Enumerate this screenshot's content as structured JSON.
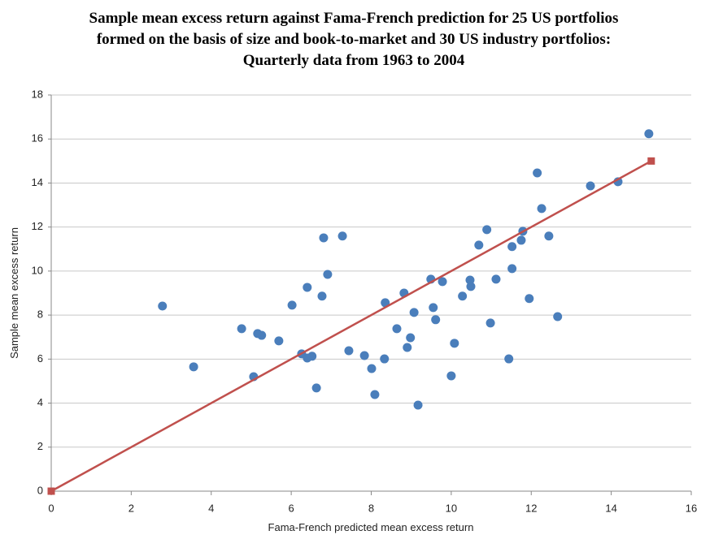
{
  "chart_data": {
    "type": "scatter",
    "title": [
      "Sample mean excess return against Fama-French prediction for 25 US portfolios",
      "formed on the basis of size and book-to-market and 30 US industry portfolios:",
      "Quarterly data from 1963 to 2004"
    ],
    "x_label": "Fama-French predicted mean excess return",
    "y_label": "Sample mean excess return",
    "xlim": [
      0,
      16
    ],
    "xticks": [
      0,
      2,
      4,
      6,
      8,
      10,
      12,
      14,
      16
    ],
    "ylim": [
      0,
      18
    ],
    "yticks": [
      0,
      2,
      4,
      6,
      8,
      10,
      12,
      14,
      16,
      18
    ],
    "grid": true,
    "series": [
      {
        "color": "#4a7ebb",
        "marker": "circle",
        "line": false,
        "x": [
          2.78,
          3.56,
          4.76,
          5.06,
          5.16,
          5.26,
          5.69,
          6.02,
          6.26,
          6.4,
          6.4,
          6.52,
          6.63,
          6.77,
          6.81,
          6.91,
          7.28,
          7.44,
          7.83,
          8.01,
          8.09,
          8.35,
          8.33,
          8.64,
          8.82,
          8.9,
          8.98,
          9.07,
          9.17,
          9.49,
          9.55,
          9.61,
          9.78,
          10.0,
          10.08,
          10.28,
          10.47,
          10.49,
          10.69,
          10.89,
          10.98,
          11.12,
          11.44,
          11.52,
          11.52,
          11.75,
          11.79,
          11.95,
          12.15,
          12.26,
          12.44,
          12.66,
          13.48,
          14.17,
          14.94
        ],
        "values": [
          8.41,
          5.65,
          7.38,
          5.2,
          7.16,
          7.08,
          6.83,
          8.45,
          6.24,
          9.26,
          6.05,
          6.13,
          4.69,
          8.86,
          11.51,
          9.85,
          11.59,
          6.38,
          6.16,
          5.57,
          4.39,
          8.56,
          6.01,
          7.38,
          9.0,
          6.53,
          6.97,
          8.12,
          3.91,
          9.63,
          8.34,
          7.79,
          9.52,
          5.24,
          6.72,
          8.86,
          9.59,
          9.3,
          11.18,
          11.88,
          7.64,
          9.63,
          6.01,
          11.11,
          10.11,
          11.4,
          11.81,
          8.75,
          14.46,
          12.84,
          11.59,
          7.93,
          13.87,
          14.06,
          16.24
        ]
      },
      {
        "color": "#c0504d",
        "marker": "square",
        "line": true,
        "x": [
          0,
          15
        ],
        "values": [
          0,
          15
        ]
      }
    ]
  }
}
